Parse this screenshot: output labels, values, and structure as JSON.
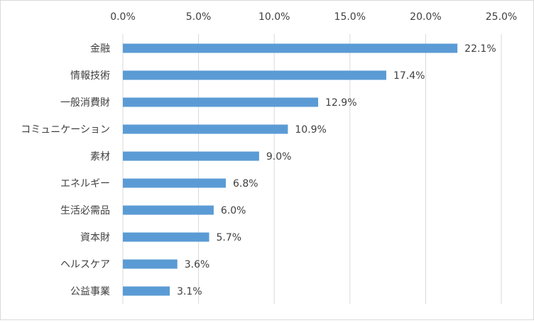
{
  "chart_data": {
    "type": "bar",
    "orientation": "horizontal",
    "categories": [
      "金融",
      "情報技術",
      "一般消費財",
      "コミュニケーション",
      "素材",
      "エネルギー",
      "生活必需品",
      "資本財",
      "ヘルスケア",
      "公益事業"
    ],
    "values": [
      22.1,
      17.4,
      12.9,
      10.9,
      9.0,
      6.8,
      6.0,
      5.7,
      3.6,
      3.1
    ],
    "data_labels": [
      "22.1%",
      "17.4%",
      "12.9%",
      "10.9%",
      "9.0%",
      "6.8%",
      "6.0%",
      "5.7%",
      "3.6%",
      "3.1%"
    ],
    "xlim": [
      0,
      25
    ],
    "x_ticks": [
      0,
      5,
      10,
      15,
      20,
      25
    ],
    "x_tick_labels": [
      "0.0%",
      "5.0%",
      "10.0%",
      "15.0%",
      "20.0%",
      "25.0%"
    ],
    "x_axis_position": "top",
    "grid": "vertical",
    "legend": "none",
    "title": "",
    "xlabel": "",
    "ylabel": "",
    "bar_color": "#5b9bd5",
    "grid_color": "#d9d9d9",
    "text_color": "#404040"
  }
}
